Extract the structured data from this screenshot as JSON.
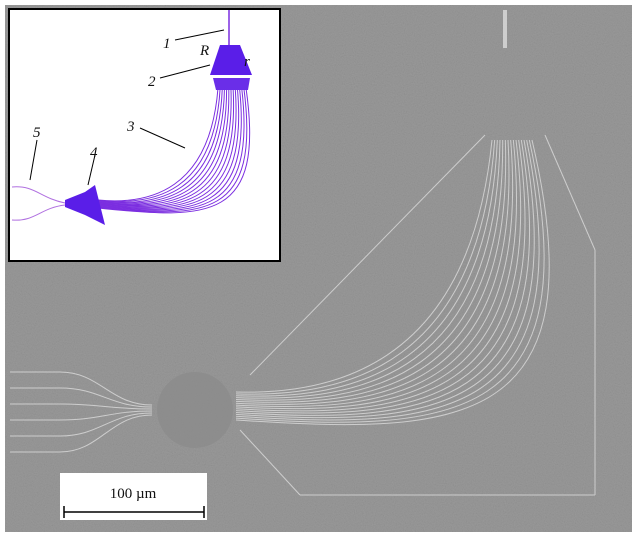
{
  "inset": {
    "labels": [
      "1",
      "R",
      "r",
      "2",
      "3",
      "4",
      "5"
    ]
  },
  "scale_bar": {
    "label": "100 µm"
  }
}
